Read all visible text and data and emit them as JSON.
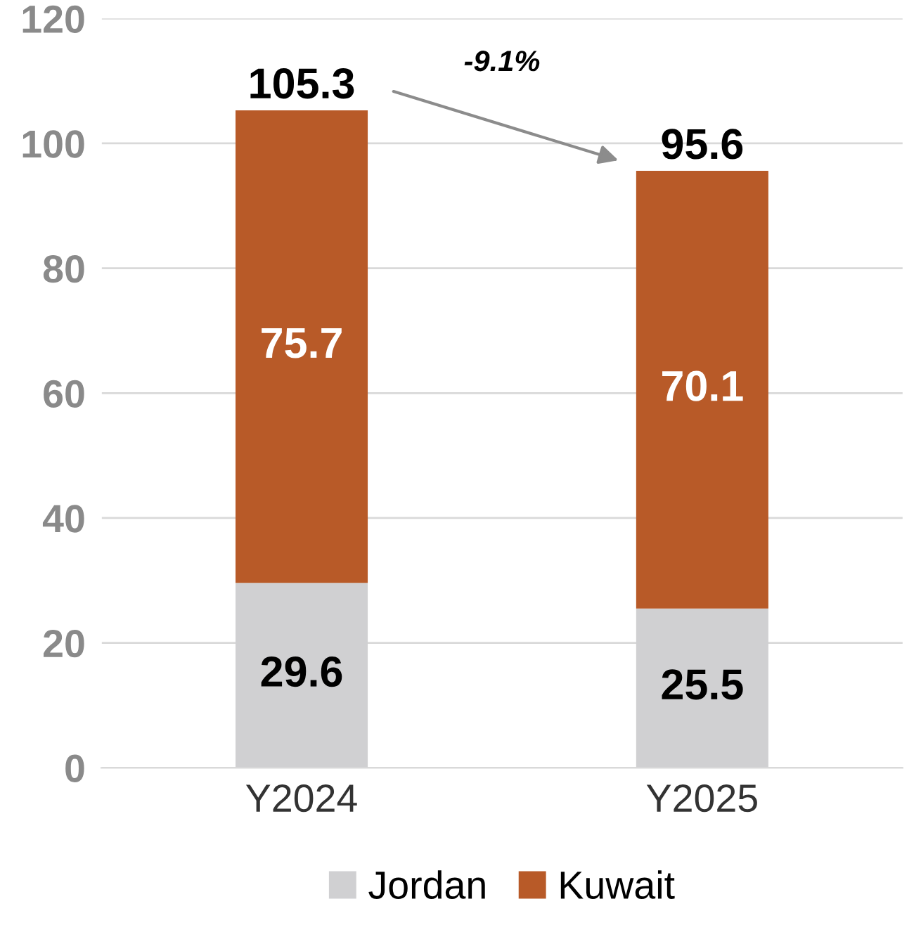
{
  "chart_data": {
    "type": "bar",
    "stacked": true,
    "categories": [
      "Y2024",
      "Y2025"
    ],
    "series": [
      {
        "name": "Jordan",
        "color": "#d0d0d2",
        "values": [
          29.6,
          25.5
        ]
      },
      {
        "name": "Kuwait",
        "color": "#b85a28",
        "values": [
          75.7,
          70.1
        ]
      }
    ],
    "totals": [
      "105.3",
      "95.6"
    ],
    "data_labels": true,
    "annotations": [
      "-9.1%"
    ],
    "ylim": [
      0,
      120
    ],
    "yticks": [
      0,
      20,
      40,
      60,
      80,
      100,
      120
    ],
    "grid": "y",
    "legend": "bottom"
  }
}
